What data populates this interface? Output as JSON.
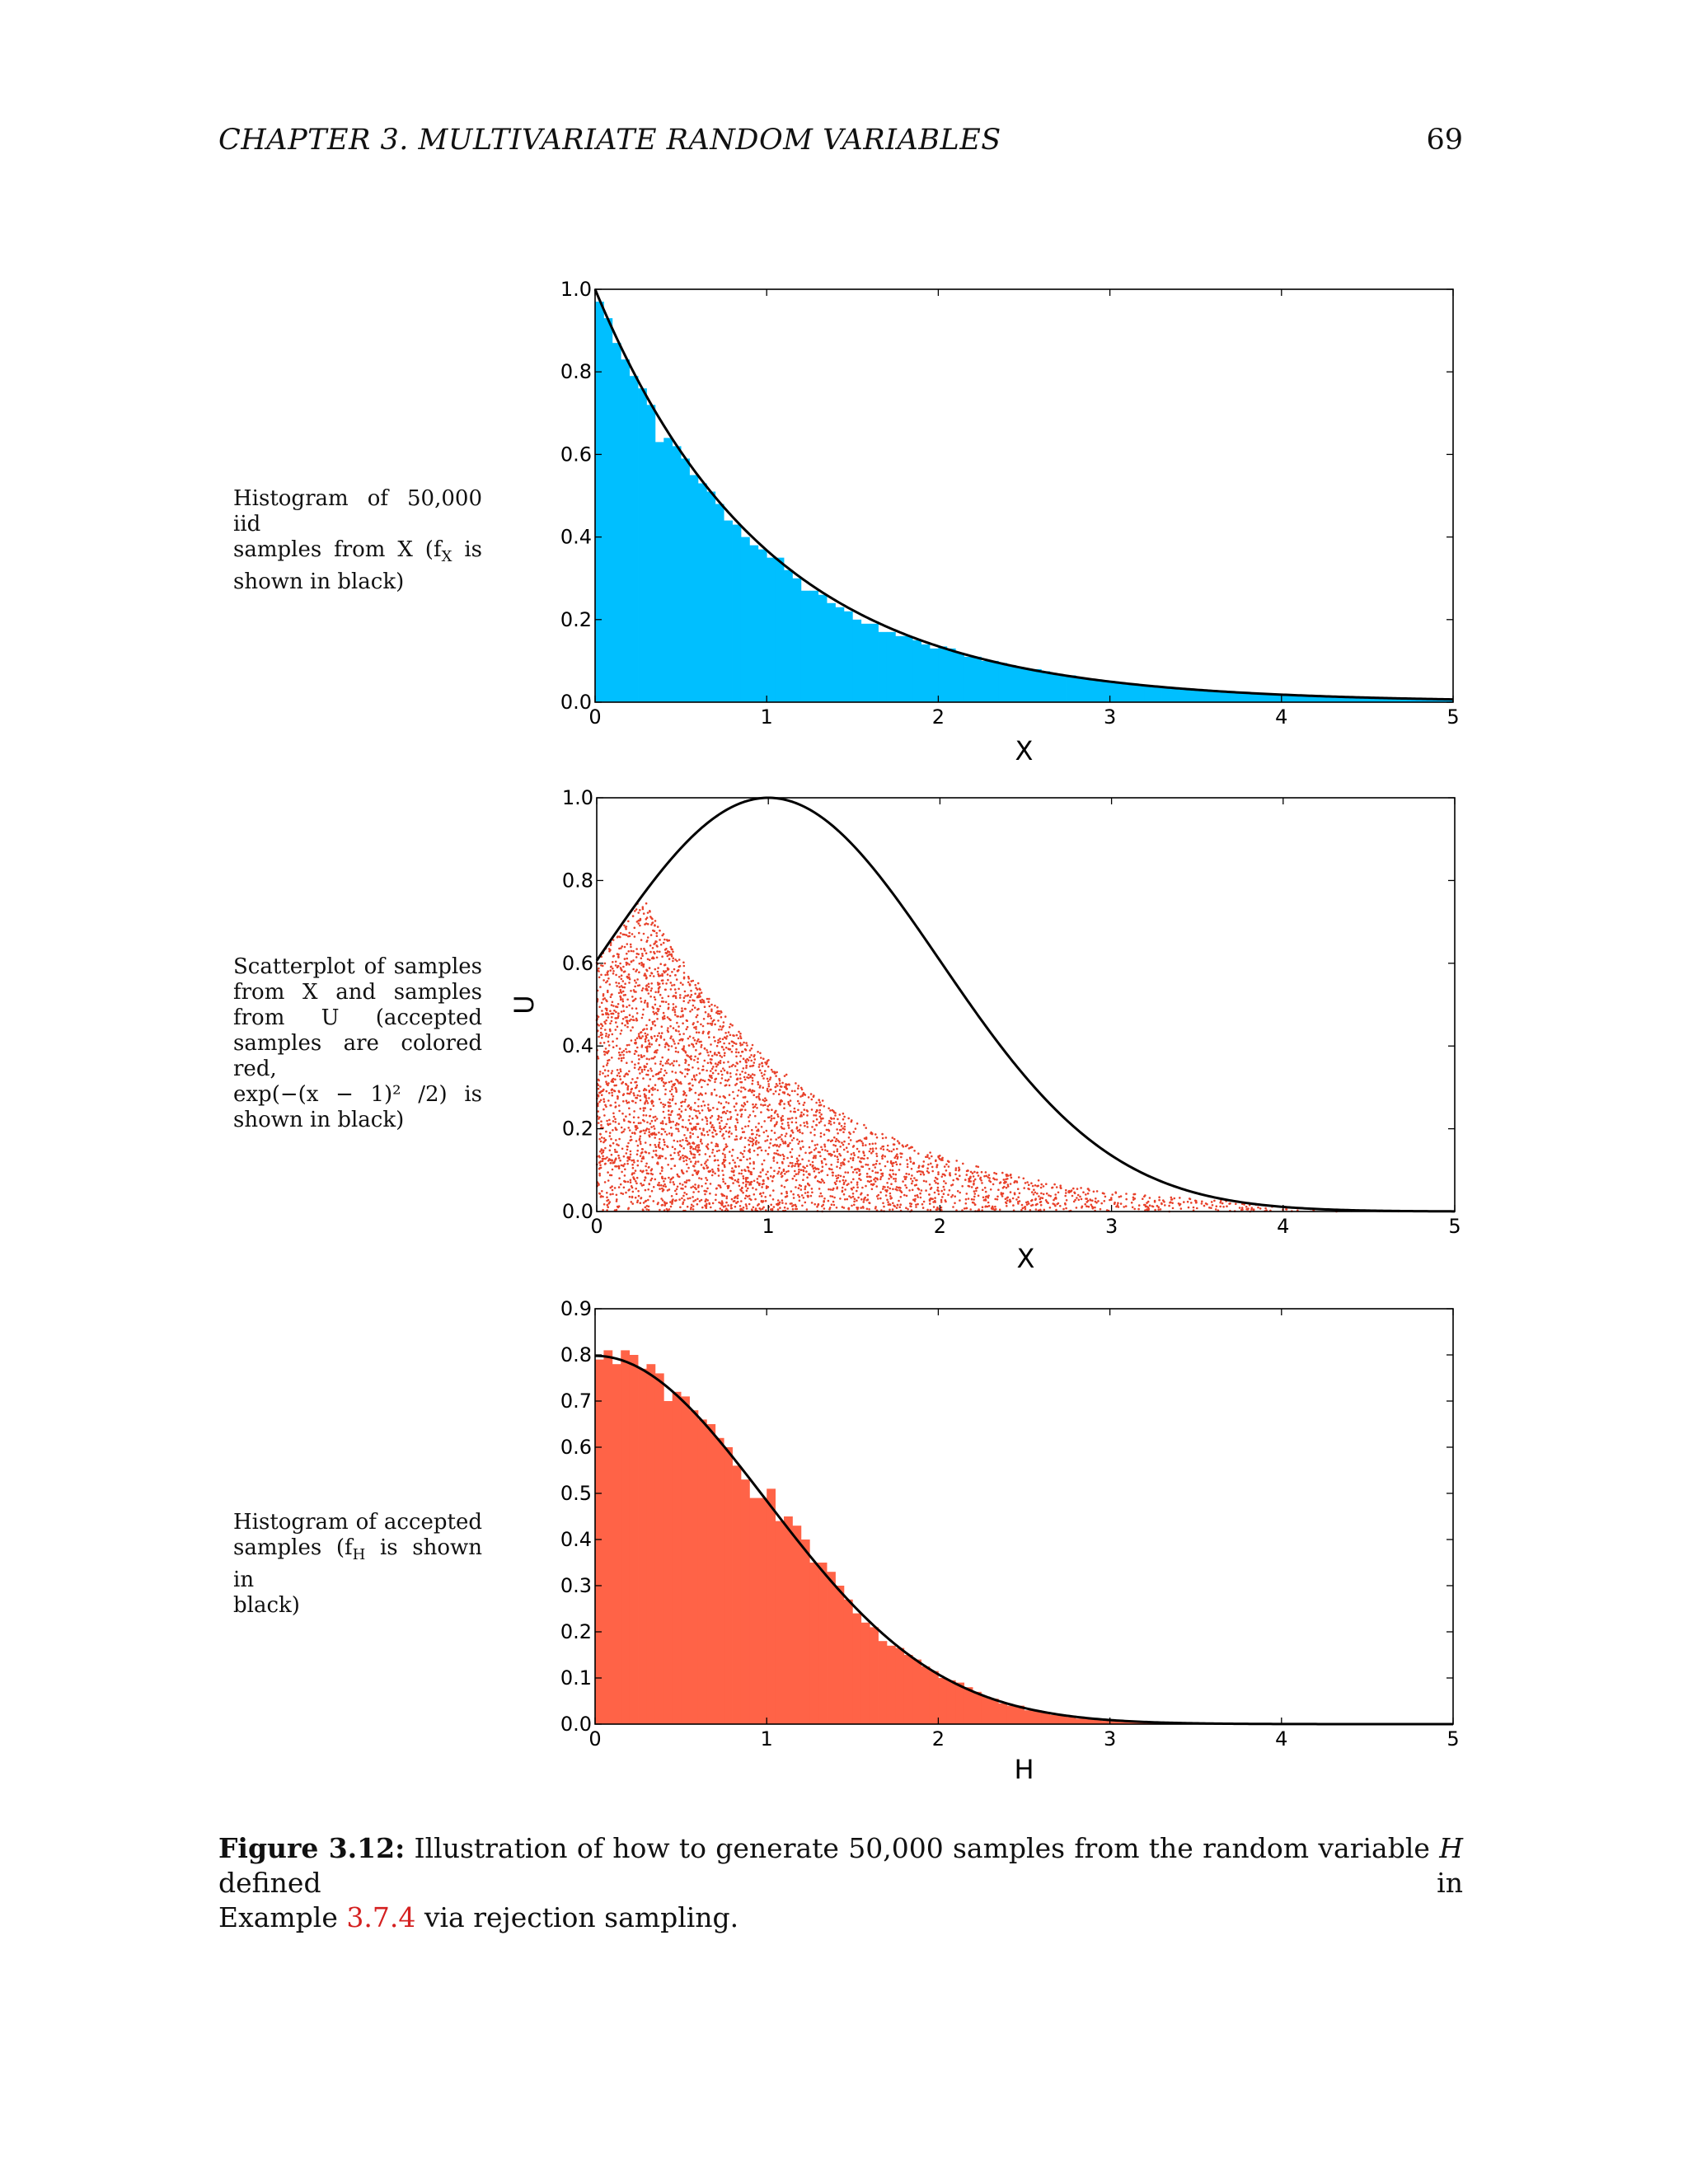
{
  "header": {
    "chapter_title": "CHAPTER 3.  MULTIVARIATE RANDOM VARIABLES",
    "page_number": "69"
  },
  "side_notes": {
    "hist_x": [
      "Histogram of 50,000 iid",
      "samples from X (f",
      "X",
      " is",
      "shown in black)"
    ],
    "scatter": [
      "Scatterplot of samples",
      "from X and samples",
      "from U (accepted",
      "samples are colored red,",
      "exp(−(x − 1)² /2)  is",
      "shown in black)"
    ],
    "hist_h": [
      "Histogram of accepted",
      "samples (f",
      "H",
      " is shown in",
      "black)"
    ]
  },
  "caption": {
    "label": "Figure 3.12:",
    "text_1": " Illustration of how to generate 50,000 samples from the random variable ",
    "var": "H",
    "text_2": " defined in",
    "text_3": "Example ",
    "ref": "3.7.4",
    "text_4": " via rejection sampling."
  },
  "chart_data": [
    {
      "type": "bar",
      "description_role": "histogram",
      "xlabel": "X",
      "ylabel": "",
      "xlim": [
        0,
        5
      ],
      "ylim": [
        0,
        1.0
      ],
      "xticks": [
        "0",
        "1",
        "2",
        "3",
        "4",
        "5"
      ],
      "yticks": [
        "0.0",
        "0.2",
        "0.4",
        "0.6",
        "0.8",
        "1.0"
      ],
      "bar_color": "#00bfff",
      "bin_width": 0.05,
      "curve": "exp(-x)",
      "curve_color": "#000000",
      "values": [
        0.97,
        0.93,
        0.87,
        0.83,
        0.79,
        0.76,
        0.72,
        0.63,
        0.64,
        0.62,
        0.59,
        0.55,
        0.53,
        0.51,
        0.48,
        0.44,
        0.43,
        0.4,
        0.38,
        0.37,
        0.35,
        0.35,
        0.32,
        0.3,
        0.27,
        0.27,
        0.26,
        0.24,
        0.23,
        0.22,
        0.2,
        0.19,
        0.19,
        0.17,
        0.17,
        0.16,
        0.16,
        0.15,
        0.14,
        0.13,
        0.135,
        0.13,
        0.12,
        0.11,
        0.11,
        0.1,
        0.1,
        0.095,
        0.09,
        0.085,
        0.08,
        0.08,
        0.075,
        0.07,
        0.065,
        0.065,
        0.06,
        0.055,
        0.055,
        0.05,
        0.05,
        0.045,
        0.045,
        0.04,
        0.04,
        0.038,
        0.035,
        0.033,
        0.03,
        0.03,
        0.028,
        0.027,
        0.025,
        0.024,
        0.022,
        0.021,
        0.02,
        0.019,
        0.018,
        0.017,
        0.016,
        0.015,
        0.014,
        0.014,
        0.013,
        0.012,
        0.011,
        0.011,
        0.01,
        0.01,
        0.009,
        0.009,
        0.008,
        0.008,
        0.007,
        0.007,
        0.007,
        0.006,
        0.006,
        0.006
      ]
    },
    {
      "type": "scatter",
      "xlabel": "X",
      "ylabel": "U",
      "xlim": [
        0,
        5
      ],
      "ylim": [
        0,
        1.0
      ],
      "xticks": [
        "0",
        "1",
        "2",
        "3",
        "4",
        "5"
      ],
      "yticks": [
        "0.0",
        "0.2",
        "0.4",
        "0.6",
        "0.8",
        "1.0"
      ],
      "point_color": "#e8402a",
      "curve": "exp(-(x-1)^2/2)",
      "curve_color": "#000000",
      "accepted_points_shown": 4000
    },
    {
      "type": "bar",
      "description_role": "histogram",
      "xlabel": "H",
      "ylabel": "",
      "xlim": [
        0,
        5
      ],
      "ylim": [
        0,
        0.9
      ],
      "xticks": [
        "0",
        "1",
        "2",
        "3",
        "4",
        "5"
      ],
      "yticks": [
        "0.0",
        "0.1",
        "0.2",
        "0.3",
        "0.4",
        "0.5",
        "0.6",
        "0.7",
        "0.8",
        "0.9"
      ],
      "bar_color": "#ff6347",
      "bin_width": 0.05,
      "curve": "0.798*exp(-x^2/2)",
      "curve_color": "#000000",
      "values": [
        0.79,
        0.81,
        0.78,
        0.81,
        0.8,
        0.77,
        0.78,
        0.76,
        0.7,
        0.72,
        0.71,
        0.68,
        0.66,
        0.65,
        0.62,
        0.6,
        0.56,
        0.53,
        0.49,
        0.49,
        0.51,
        0.44,
        0.45,
        0.43,
        0.4,
        0.35,
        0.35,
        0.33,
        0.3,
        0.27,
        0.24,
        0.22,
        0.21,
        0.18,
        0.17,
        0.165,
        0.15,
        0.14,
        0.125,
        0.115,
        0.1,
        0.095,
        0.09,
        0.08,
        0.07,
        0.06,
        0.055,
        0.045,
        0.04,
        0.04,
        0.03,
        0.03,
        0.025,
        0.02,
        0.018,
        0.015,
        0.012,
        0.011,
        0.009,
        0.007,
        0.006,
        0.005,
        0.004,
        0.003,
        0.003,
        0.002,
        0.002,
        0.001,
        0.001,
        0.001,
        0.001,
        0.0005,
        0.0005,
        0,
        0,
        0,
        0,
        0,
        0,
        0,
        0,
        0,
        0,
        0,
        0,
        0,
        0,
        0,
        0,
        0,
        0,
        0,
        0,
        0,
        0,
        0,
        0,
        0,
        0,
        0
      ]
    }
  ]
}
